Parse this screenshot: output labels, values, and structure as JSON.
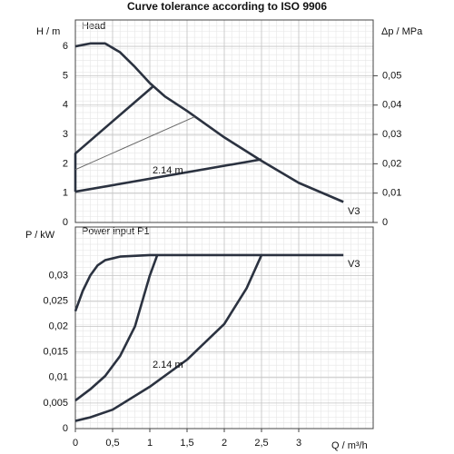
{
  "chart_data": [
    {
      "type": "line",
      "title": "Curve tolerance according to ISO 9906",
      "panel_label": "Head",
      "ylabel": "H / m",
      "y2label": "Δp / MPa",
      "xlim": [
        0,
        4
      ],
      "ylim": [
        0,
        6.9
      ],
      "yticks": [
        0,
        1,
        2,
        3,
        4,
        5,
        6
      ],
      "y2lim": [
        0,
        0.069
      ],
      "y2ticks": [
        0,
        {
          "value": 0.01,
          "label": "0,01"
        },
        {
          "value": 0.02,
          "label": "0,02"
        },
        {
          "value": 0.03,
          "label": "0,03"
        },
        {
          "value": 0.04,
          "label": "0,04"
        },
        {
          "value": 0.05,
          "label": "0,05"
        }
      ],
      "grid": true,
      "color": "#2b3240",
      "series": [
        {
          "name": "V3",
          "x": [
            0,
            0.2,
            0.4,
            0.6,
            0.8,
            1.0,
            1.2,
            1.5,
            2.0,
            2.5,
            3.0,
            3.6
          ],
          "y": [
            6.0,
            6.1,
            6.1,
            5.8,
            5.3,
            4.75,
            4.3,
            3.8,
            2.9,
            2.1,
            1.35,
            0.7
          ]
        },
        {
          "x": [
            0,
            0,
            1.05
          ],
          "y": [
            1.05,
            2.35,
            4.65
          ]
        },
        {
          "x": [
            0,
            1.6
          ],
          "y": [
            1.8,
            3.6
          ],
          "thin": true
        },
        {
          "name": "2.14 m",
          "x": [
            0,
            2.5
          ],
          "y": [
            1.05,
            2.15
          ]
        }
      ]
    },
    {
      "type": "line",
      "panel_label": "Power input P1",
      "ylabel": "P / kW",
      "xlabel": "Q / m³/h",
      "xlim": [
        0,
        4
      ],
      "xticks": [
        0,
        {
          "value": 0.5,
          "label": "0,5"
        },
        1,
        {
          "value": 1.5,
          "label": "1,5"
        },
        2,
        {
          "value": 2.5,
          "label": "2,5"
        },
        3
      ],
      "ylim": [
        0,
        0.0395
      ],
      "yticks": [
        0,
        {
          "value": 0.005,
          "label": "0,005"
        },
        {
          "value": 0.01,
          "label": "0,01"
        },
        {
          "value": 0.015,
          "label": "0,015"
        },
        {
          "value": 0.02,
          "label": "0,02"
        },
        {
          "value": 0.025,
          "label": "0,025"
        },
        {
          "value": 0.03,
          "label": "0,03"
        }
      ],
      "grid": true,
      "color": "#2b3240",
      "series": [
        {
          "name": "V3",
          "x": [
            0,
            0.1,
            0.2,
            0.3,
            0.4,
            0.6,
            1.0,
            2.0,
            3.0,
            3.6
          ],
          "y": [
            0.023,
            0.027,
            0.03,
            0.032,
            0.033,
            0.0337,
            0.034,
            0.034,
            0.034,
            0.034
          ]
        },
        {
          "x": [
            0,
            0.2,
            0.4,
            0.6,
            0.8,
            0.9,
            1.0,
            1.1
          ],
          "y": [
            0.0055,
            0.0077,
            0.0103,
            0.0142,
            0.02,
            0.025,
            0.03,
            0.034
          ]
        },
        {
          "name": "2.14 m",
          "x": [
            0,
            0.2,
            0.5,
            1.0,
            1.5,
            2.0,
            2.3,
            2.5
          ],
          "y": [
            0.0015,
            0.0022,
            0.0037,
            0.0082,
            0.0135,
            0.0205,
            0.0275,
            0.034
          ]
        }
      ]
    }
  ]
}
